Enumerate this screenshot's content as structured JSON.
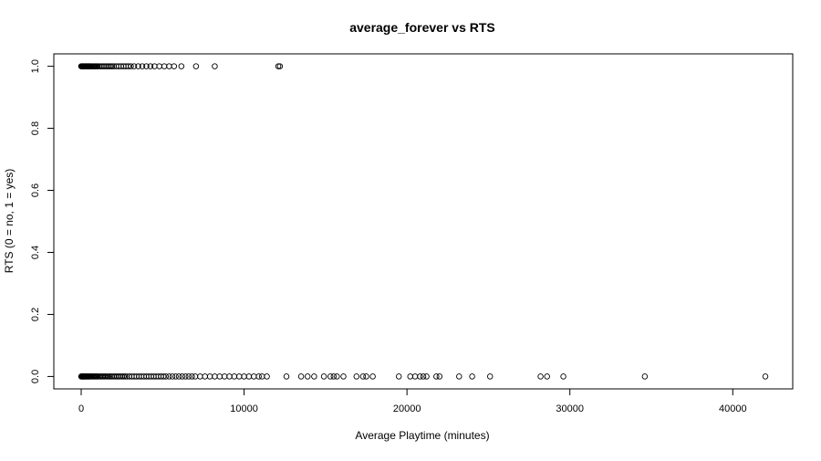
{
  "chart_data": {
    "type": "scatter",
    "title": "average_forever vs RTS",
    "xlabel": "Average Playtime (minutes)",
    "ylabel": "RTS (0 = no, 1 = yes)",
    "xlim": [
      -1680,
      43680
    ],
    "ylim": [
      -0.04,
      1.04
    ],
    "xticks": [
      0,
      10000,
      20000,
      30000,
      40000
    ],
    "yticks": [
      0.0,
      0.2,
      0.4,
      0.6,
      0.8,
      1.0
    ],
    "xtick_labels": [
      "0",
      "10000",
      "20000",
      "30000",
      "40000"
    ],
    "ytick_labels": [
      "0.0",
      "0.2",
      "0.4",
      "0.6",
      "0.8",
      "1.0"
    ],
    "grid": false,
    "legend": "none",
    "marker": "open-circle",
    "points_y1": [
      0,
      30,
      60,
      90,
      120,
      150,
      180,
      210,
      240,
      270,
      300,
      330,
      360,
      390,
      420,
      450,
      480,
      510,
      540,
      570,
      600,
      650,
      700,
      750,
      800,
      850,
      900,
      950,
      1000,
      1100,
      1200,
      1300,
      1400,
      1500,
      1600,
      1700,
      1800,
      1900,
      2000,
      2150,
      2300,
      2450,
      2600,
      2750,
      2900,
      3050,
      3250,
      3500,
      3750,
      4000,
      4250,
      4500,
      4800,
      5100,
      5400,
      5700,
      6150,
      7050,
      8200,
      12100,
      12200
    ],
    "points_y0": [
      0,
      20,
      40,
      60,
      80,
      100,
      120,
      140,
      160,
      180,
      200,
      230,
      260,
      290,
      320,
      350,
      380,
      410,
      440,
      470,
      500,
      550,
      600,
      650,
      700,
      750,
      800,
      850,
      900,
      950,
      1000,
      1080,
      1160,
      1240,
      1320,
      1400,
      1480,
      1560,
      1640,
      1720,
      1800,
      1900,
      2000,
      2100,
      2200,
      2300,
      2400,
      2500,
      2600,
      2700,
      2800,
      2950,
      3100,
      3250,
      3400,
      3550,
      3700,
      3850,
      4000,
      4150,
      4300,
      4450,
      4600,
      4750,
      4900,
      5050,
      5200,
      5400,
      5600,
      5800,
      6000,
      6200,
      6400,
      6600,
      6800,
      7000,
      7300,
      7600,
      7900,
      8200,
      8500,
      8800,
      9100,
      9400,
      9700,
      10000,
      10300,
      10600,
      10900,
      11100,
      11400,
      12600,
      13500,
      13900,
      14300,
      14900,
      15300,
      15500,
      15700,
      16100,
      16900,
      17300,
      17500,
      17900,
      19500,
      20200,
      20500,
      20800,
      21000,
      21200,
      21800,
      22000,
      23200,
      24000,
      25100,
      28200,
      28600,
      29600,
      34600,
      42000
    ]
  }
}
